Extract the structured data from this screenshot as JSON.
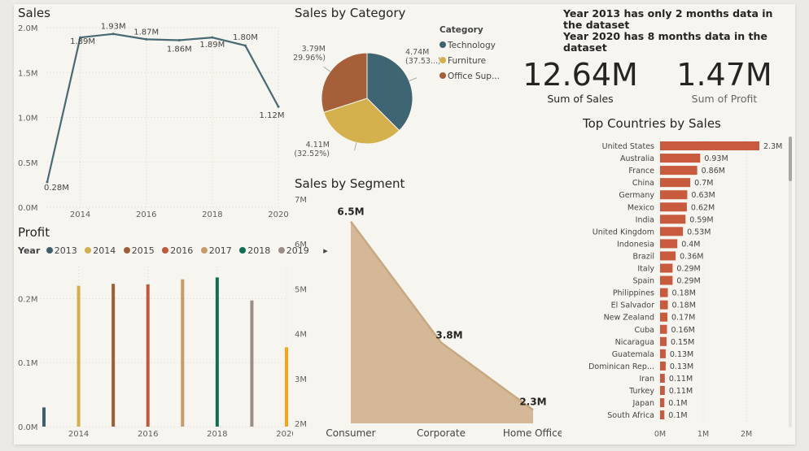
{
  "note": {
    "line1": "Year 2013 has only 2 months data in the dataset",
    "line2": "Year 2020 has 8 months data in the dataset"
  },
  "kpis": [
    {
      "value": "12.64M",
      "label": "Sum of Sales"
    },
    {
      "value": "1.47M",
      "label": "Sum of Profit"
    }
  ],
  "sales_title": "Sales",
  "category_title": "Sales by Category",
  "segment_title": "Sales by Segment",
  "profit_title": "Profit",
  "countries_title": "Top Countries by Sales",
  "profit_legend": {
    "label": "Year",
    "items": [
      {
        "name": "2013",
        "color": "#3d5f6e"
      },
      {
        "name": "2014",
        "color": "#d2b04f"
      },
      {
        "name": "2015",
        "color": "#9c5f38"
      },
      {
        "name": "2016",
        "color": "#c0583e"
      },
      {
        "name": "2017",
        "color": "#c69c6d"
      },
      {
        "name": "2018",
        "color": "#106e53"
      },
      {
        "name": "2019",
        "color": "#9b8e86"
      }
    ],
    "more": "▸"
  },
  "category_legend": {
    "title": "Category",
    "items": [
      {
        "name": "Technology",
        "color": "#3f6472"
      },
      {
        "name": "Furniture",
        "color": "#d4b14c"
      },
      {
        "name": "Office Sup...",
        "color": "#a55f39"
      }
    ]
  },
  "chart_data": [
    {
      "id": "sales",
      "type": "line",
      "title": "Sales",
      "x": [
        2013,
        2014,
        2015,
        2016,
        2017,
        2018,
        2019,
        2020
      ],
      "values": [
        0.28,
        1.89,
        1.93,
        1.87,
        1.86,
        1.89,
        1.8,
        1.12
      ],
      "data_labels": [
        "0.28M",
        "1.89M",
        "1.93M",
        "1.87M",
        "1.86M",
        "1.89M",
        "1.80M",
        "1.12M"
      ],
      "ylim": [
        0,
        2
      ],
      "yticks": [
        "0.0M",
        "0.5M",
        "1.0M",
        "1.5M",
        "2.0M"
      ],
      "xticks": [
        "2014",
        "2016",
        "2018",
        "2020"
      ],
      "color": "#476a74",
      "grid": true
    },
    {
      "id": "category",
      "type": "pie",
      "title": "Sales by Category",
      "legend_title": "Category",
      "slices": [
        {
          "name": "Technology",
          "value": 4.74,
          "label": "4.74M",
          "pct": "(37.53...)",
          "color": "#3f6472"
        },
        {
          "name": "Furniture",
          "value": 4.11,
          "label": "4.11M",
          "pct": "(32.52%)",
          "color": "#d4b14c"
        },
        {
          "name": "Office Sup...",
          "value": 3.79,
          "label": "3.79M",
          "pct": "(29.96%)",
          "color": "#a55f39"
        }
      ]
    },
    {
      "id": "segment",
      "type": "area",
      "title": "Sales by Segment",
      "categories": [
        "Consumer",
        "Corporate",
        "Home Office"
      ],
      "values": [
        6.5,
        3.8,
        2.3
      ],
      "data_labels": [
        "6.5M",
        "3.8M",
        "2.3M"
      ],
      "ylim": [
        2,
        7
      ],
      "yticks": [
        "2M",
        "3M",
        "4M",
        "5M",
        "6M",
        "7M"
      ],
      "color": "#d4b898"
    },
    {
      "id": "profit",
      "type": "bar",
      "title": "Profit",
      "legend_title": "Year",
      "series": [
        {
          "name": "2013",
          "x": 2013,
          "value": 0.03,
          "color": "#3d5f6e"
        },
        {
          "name": "2014",
          "x": 2014,
          "value": 0.22,
          "color": "#d2b04f"
        },
        {
          "name": "2015",
          "x": 2015,
          "value": 0.223,
          "color": "#9c5f38"
        },
        {
          "name": "2016",
          "x": 2016,
          "value": 0.222,
          "color": "#c0583e"
        },
        {
          "name": "2017",
          "x": 2017,
          "value": 0.23,
          "color": "#c69c6d"
        },
        {
          "name": "2018",
          "x": 2018,
          "value": 0.233,
          "color": "#106e53"
        },
        {
          "name": "2019",
          "x": 2019,
          "value": 0.197,
          "color": "#9b8e86"
        },
        {
          "name": "2020",
          "x": 2020,
          "value": 0.124,
          "color": "#f2a81d"
        }
      ],
      "ylim": [
        0,
        0.25
      ],
      "yticks": [
        "0.0M",
        "0.1M",
        "0.2M"
      ],
      "xticks": [
        "2014",
        "2016",
        "2018",
        "2020"
      ]
    },
    {
      "id": "countries",
      "type": "bar",
      "orientation": "horizontal",
      "title": "Top Countries by Sales",
      "categories": [
        "United States",
        "Australia",
        "France",
        "China",
        "Germany",
        "Mexico",
        "India",
        "United Kingdom",
        "Indonesia",
        "Brazil",
        "Italy",
        "Spain",
        "Philippines",
        "El Salvador",
        "New Zealand",
        "Cuba",
        "Nicaragua",
        "Guatemala",
        "Dominican Rep...",
        "Iran",
        "Turkey",
        "Japan",
        "South Africa"
      ],
      "values": [
        2.3,
        0.93,
        0.86,
        0.7,
        0.63,
        0.62,
        0.59,
        0.53,
        0.4,
        0.36,
        0.29,
        0.29,
        0.18,
        0.18,
        0.17,
        0.16,
        0.15,
        0.13,
        0.13,
        0.11,
        0.11,
        0.1,
        0.1
      ],
      "data_labels": [
        "2.3M",
        "0.93M",
        "0.86M",
        "0.7M",
        "0.63M",
        "0.62M",
        "0.59M",
        "0.53M",
        "0.4M",
        "0.36M",
        "0.29M",
        "0.29M",
        "0.18M",
        "0.18M",
        "0.17M",
        "0.16M",
        "0.15M",
        "0.13M",
        "0.13M",
        "0.11M",
        "0.11M",
        "0.1M",
        "0.1M"
      ],
      "xticks": [
        "0M",
        "1M",
        "2M"
      ],
      "xlim": [
        0,
        2.3
      ],
      "color": "#c85a3e"
    }
  ]
}
